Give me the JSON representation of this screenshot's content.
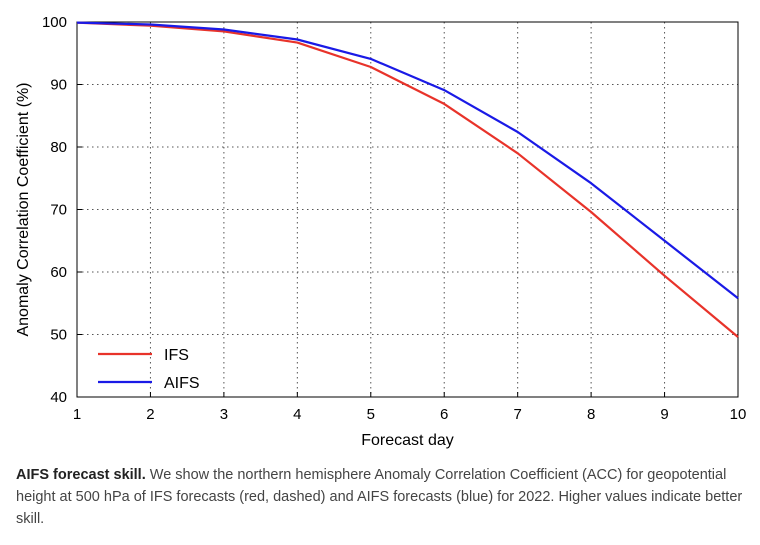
{
  "chart_data": {
    "type": "line",
    "title": "",
    "xlabel": "Forecast day",
    "ylabel": "Anomaly Correlation Coefficient (%)",
    "xlim": [
      1,
      10
    ],
    "ylim": [
      40,
      100
    ],
    "x": [
      1,
      2,
      3,
      4,
      5,
      6,
      7,
      8,
      9,
      10
    ],
    "xticks": [
      "1",
      "2",
      "3",
      "4",
      "5",
      "6",
      "7",
      "8",
      "9",
      "10"
    ],
    "yticks": [
      "40",
      "50",
      "60",
      "70",
      "80",
      "90",
      "100"
    ],
    "grid": true,
    "legend_position": "bottom-left",
    "series": [
      {
        "name": "IFS",
        "color": "#e8332a",
        "values": [
          99.9,
          99.4,
          98.5,
          96.7,
          92.8,
          86.9,
          79.0,
          69.6,
          59.4,
          49.6
        ]
      },
      {
        "name": "AIFS",
        "color": "#1a1ae6",
        "values": [
          99.9,
          99.6,
          98.8,
          97.2,
          94.1,
          89.1,
          82.4,
          74.2,
          65.0,
          55.8
        ]
      }
    ]
  },
  "caption": {
    "bold": "AIFS forecast skill.",
    "text": " We show the northern hemisphere Anomaly Correlation Coefficient (ACC) for geopotential height at 500 hPa of IFS forecasts (red, dashed) and AIFS forecasts (blue) for 2022. Higher values indicate better skill."
  }
}
